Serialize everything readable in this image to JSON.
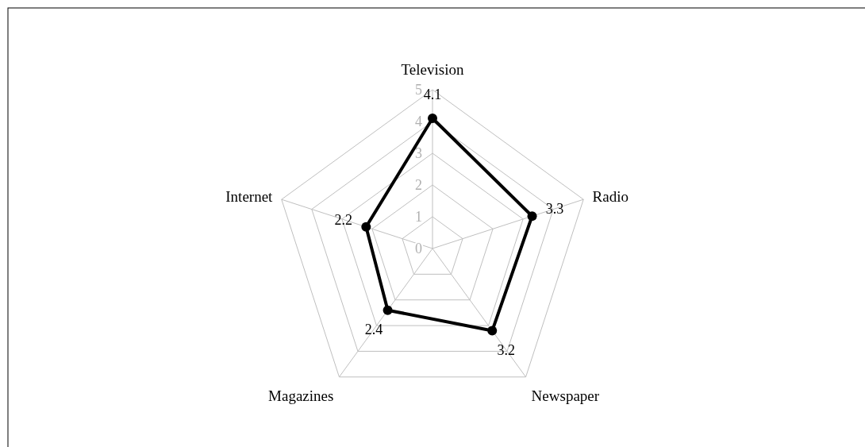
{
  "chart_data": {
    "type": "radar",
    "categories": [
      "Television",
      "Radio",
      "Newspaper",
      "Magazines",
      "Internet"
    ],
    "series": [
      {
        "color": "#000000",
        "values": [
          4.1,
          3.3,
          3.2,
          2.4,
          2.2
        ]
      }
    ],
    "ylim": [
      0,
      5
    ],
    "yticks": [
      0,
      1,
      2,
      3,
      4,
      5
    ],
    "grid": true,
    "marker": "circle",
    "data_labels": true,
    "line_style": "solid"
  }
}
